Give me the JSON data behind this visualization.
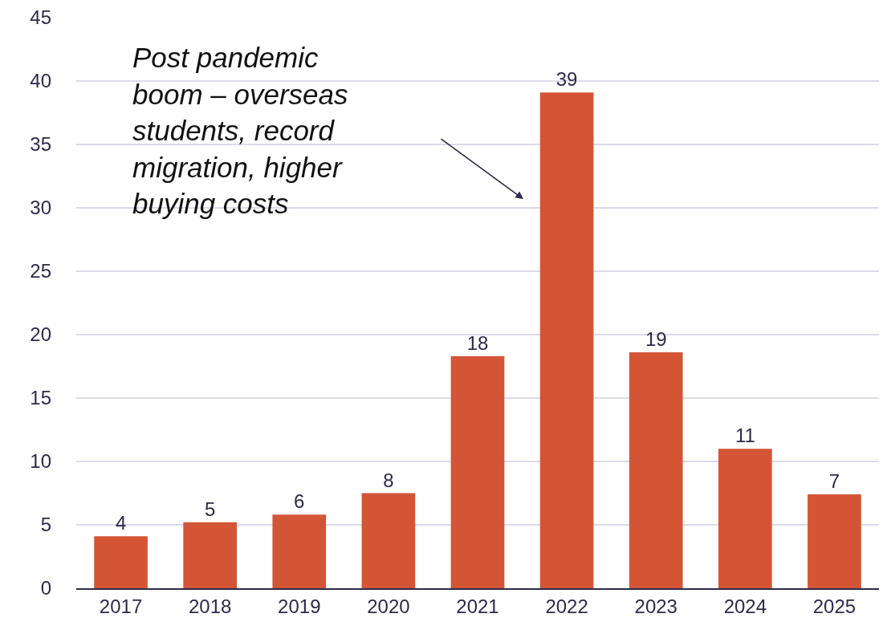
{
  "chart_data": {
    "type": "bar",
    "categories": [
      "2017",
      "2018",
      "2019",
      "2020",
      "2021",
      "2022",
      "2023",
      "2024",
      "2025"
    ],
    "values": [
      4.1,
      5.2,
      5.8,
      7.5,
      18.3,
      39.1,
      18.6,
      11,
      7.4
    ],
    "value_labels": [
      "4",
      "5",
      "6",
      "8",
      "18",
      "39",
      "19",
      "11",
      "7"
    ],
    "color": "#d35536",
    "ylim": [
      0,
      45
    ],
    "yticks": [
      0,
      5,
      10,
      15,
      20,
      25,
      30,
      35,
      40,
      45
    ],
    "grid": "y",
    "annotations": [
      "Post pandemic boom – overseas students, record migration, higher buying costs"
    ]
  }
}
